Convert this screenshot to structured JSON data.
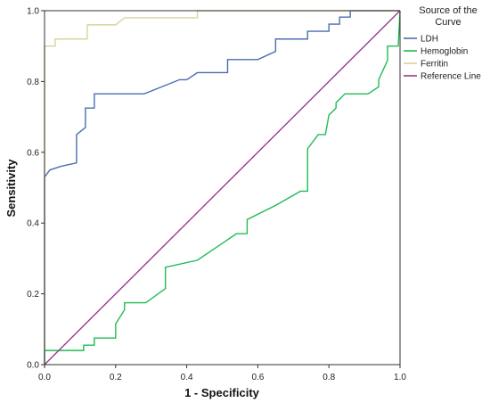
{
  "chart_data": {
    "type": "line",
    "xlabel": "1 - Specificity",
    "ylabel": "Sensitivity",
    "xlim": [
      0,
      1
    ],
    "ylim": [
      0,
      1
    ],
    "x_ticks": [
      "0.0",
      "0.2",
      "0.4",
      "0.6",
      "0.8",
      "1.0"
    ],
    "y_ticks": [
      "0.0",
      "0.2",
      "0.4",
      "0.6",
      "0.8",
      "1.0"
    ],
    "grid": false,
    "legend": {
      "title": "Source of the Curve",
      "placement": "right"
    },
    "series": [
      {
        "name": "LDH",
        "color": "#4a6eb0",
        "points": [
          [
            0,
            0
          ],
          [
            0,
            0.53
          ],
          [
            0.015,
            0.55
          ],
          [
            0.045,
            0.56
          ],
          [
            0.09,
            0.57
          ],
          [
            0.09,
            0.65
          ],
          [
            0.115,
            0.67
          ],
          [
            0.115,
            0.725
          ],
          [
            0.14,
            0.725
          ],
          [
            0.14,
            0.765
          ],
          [
            0.28,
            0.765
          ],
          [
            0.38,
            0.805
          ],
          [
            0.4,
            0.805
          ],
          [
            0.43,
            0.825
          ],
          [
            0.515,
            0.825
          ],
          [
            0.515,
            0.862
          ],
          [
            0.6,
            0.862
          ],
          [
            0.65,
            0.885
          ],
          [
            0.65,
            0.92
          ],
          [
            0.74,
            0.92
          ],
          [
            0.74,
            0.942
          ],
          [
            0.8,
            0.942
          ],
          [
            0.8,
            0.962
          ],
          [
            0.83,
            0.962
          ],
          [
            0.83,
            0.982
          ],
          [
            0.86,
            0.982
          ],
          [
            0.86,
            1.0
          ],
          [
            1.0,
            1.0
          ]
        ]
      },
      {
        "name": "Hemoglobin",
        "color": "#22bb55",
        "points": [
          [
            0,
            0
          ],
          [
            0,
            0.04
          ],
          [
            0.11,
            0.04
          ],
          [
            0.11,
            0.055
          ],
          [
            0.14,
            0.055
          ],
          [
            0.14,
            0.075
          ],
          [
            0.2,
            0.075
          ],
          [
            0.2,
            0.115
          ],
          [
            0.225,
            0.155
          ],
          [
            0.225,
            0.175
          ],
          [
            0.285,
            0.175
          ],
          [
            0.34,
            0.215
          ],
          [
            0.34,
            0.275
          ],
          [
            0.43,
            0.295
          ],
          [
            0.54,
            0.37
          ],
          [
            0.57,
            0.37
          ],
          [
            0.57,
            0.41
          ],
          [
            0.65,
            0.45
          ],
          [
            0.72,
            0.49
          ],
          [
            0.74,
            0.49
          ],
          [
            0.74,
            0.61
          ],
          [
            0.77,
            0.65
          ],
          [
            0.79,
            0.65
          ],
          [
            0.8,
            0.705
          ],
          [
            0.82,
            0.725
          ],
          [
            0.82,
            0.74
          ],
          [
            0.845,
            0.765
          ],
          [
            0.91,
            0.765
          ],
          [
            0.94,
            0.785
          ],
          [
            0.94,
            0.805
          ],
          [
            0.965,
            0.86
          ],
          [
            0.965,
            0.9
          ],
          [
            0.995,
            0.9
          ],
          [
            1.0,
            1.0
          ]
        ]
      },
      {
        "name": "Ferritin",
        "color": "#d8d49c",
        "points": [
          [
            0,
            0
          ],
          [
            0,
            0.9
          ],
          [
            0.03,
            0.9
          ],
          [
            0.03,
            0.92
          ],
          [
            0.12,
            0.92
          ],
          [
            0.12,
            0.96
          ],
          [
            0.2,
            0.96
          ],
          [
            0.225,
            0.98
          ],
          [
            0.43,
            0.98
          ],
          [
            0.43,
            1.0
          ],
          [
            1.0,
            1.0
          ]
        ]
      },
      {
        "name": "Reference Line",
        "color": "#9b3b8c",
        "points": [
          [
            0,
            0
          ],
          [
            1,
            1
          ]
        ]
      }
    ]
  }
}
